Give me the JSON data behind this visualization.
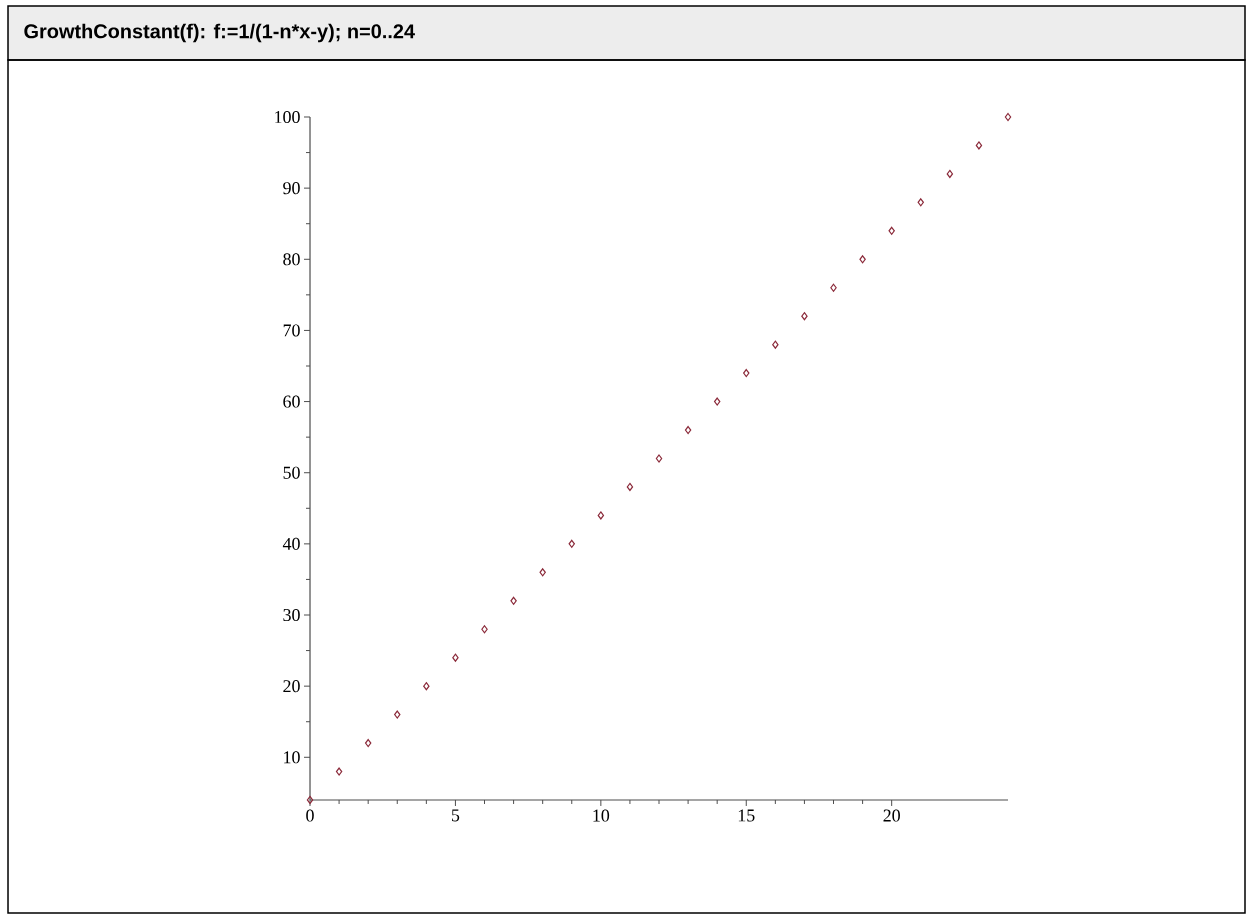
{
  "chart_data": {
    "type": "scatter",
    "title": "GrowthConstant(f): f:=1/(1-n*x-y); n=0..24",
    "x": [
      0,
      1,
      2,
      3,
      4,
      5,
      6,
      7,
      8,
      9,
      10,
      11,
      12,
      13,
      14,
      15,
      16,
      17,
      18,
      19,
      20,
      21,
      22,
      23,
      24
    ],
    "values": [
      4,
      8,
      12,
      16,
      20,
      24,
      28,
      32,
      36,
      40,
      44,
      48,
      52,
      56,
      60,
      64,
      68,
      72,
      76,
      80,
      84,
      88,
      92,
      96,
      100
    ],
    "color": "#8b2a3a",
    "marker": "diamond",
    "xlim": [
      0,
      24
    ],
    "ylim": [
      4,
      100
    ],
    "xticks": [
      0,
      5,
      10,
      15,
      20
    ],
    "yticks": [
      10,
      20,
      30,
      40,
      50,
      60,
      70,
      80,
      90,
      100
    ],
    "grid": false
  }
}
